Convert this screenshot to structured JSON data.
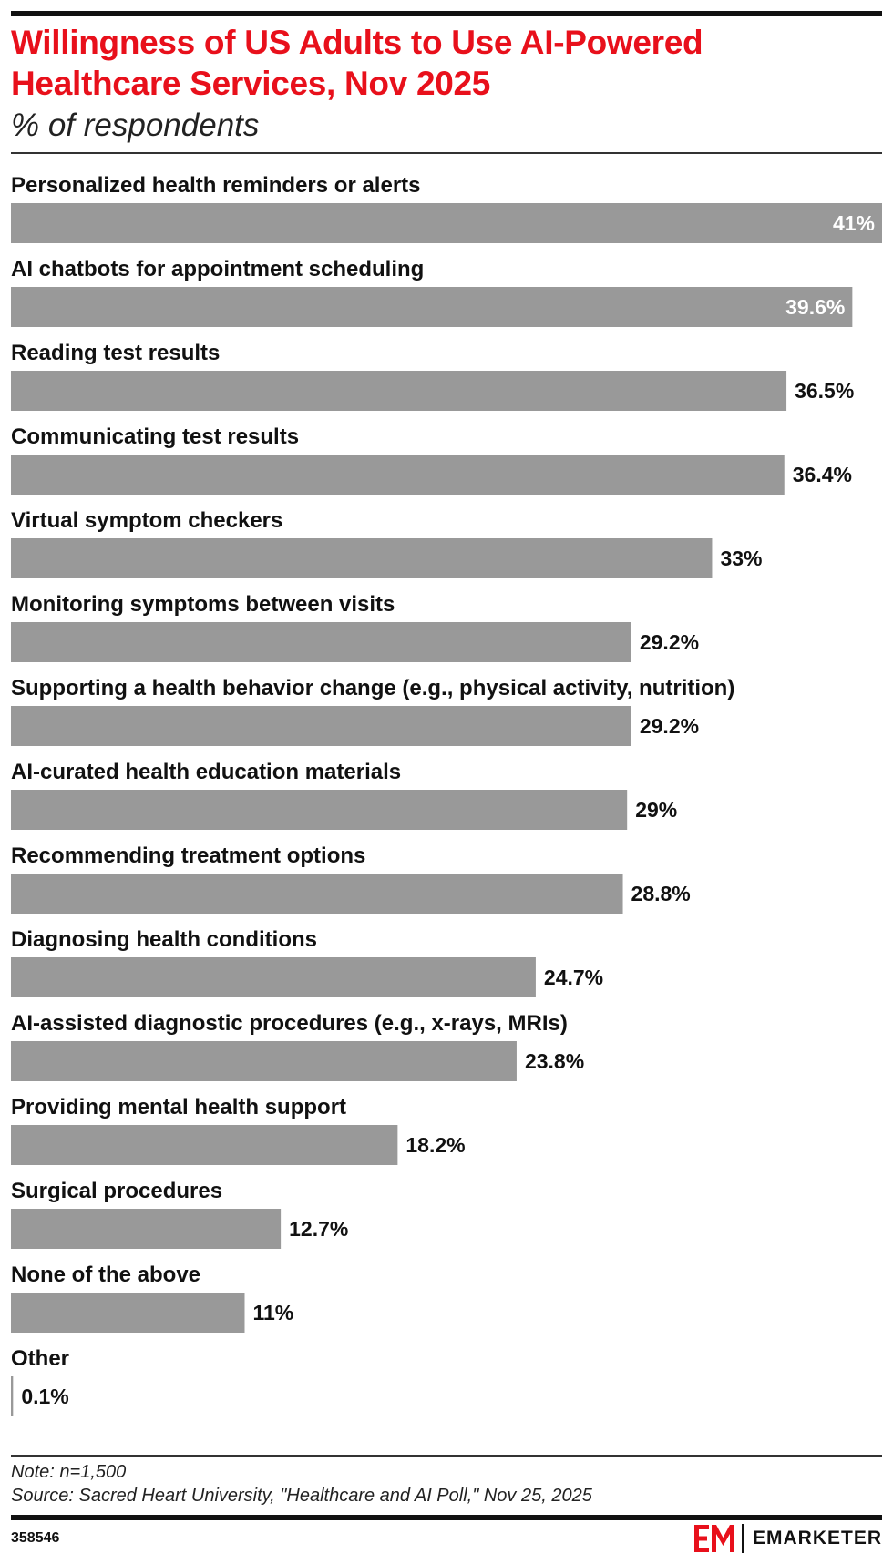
{
  "title": "Willingness of US Adults to Use AI-Powered Healthcare Services, Nov 2025",
  "subtitle": "% of respondents",
  "note": "Note: n=1,500",
  "source": "Source: Sacred Heart University, \"Healthcare and AI Poll,\" Nov 25, 2025",
  "chart_id": "358546",
  "brand": {
    "logo_icon": "em-logo-icon",
    "name": "EMARKETER"
  },
  "colors": {
    "title": "#e8101b",
    "bar": "#999999",
    "inside_label": "#ffffff",
    "text": "#111111",
    "logo": "#e8101b"
  },
  "chart_data": {
    "type": "bar",
    "orientation": "horizontal",
    "categories": [
      "Personalized health reminders or alerts",
      "AI chatbots for appointment scheduling",
      "Reading test results",
      "Communicating test results",
      "Virtual symptom checkers",
      "Monitoring symptoms between visits",
      "Supporting a health behavior change (e.g., physical activity, nutrition)",
      "AI-curated health education materials",
      "Recommending treatment options",
      "Diagnosing health conditions",
      "AI-assisted diagnostic procedures (e.g., x-rays, MRIs)",
      "Providing mental health support",
      "Surgical procedures",
      "None of the above",
      "Other"
    ],
    "values": [
      41,
      39.6,
      36.5,
      36.4,
      33,
      29.2,
      29.2,
      29,
      28.8,
      24.7,
      23.8,
      18.2,
      12.7,
      11,
      0.1
    ],
    "labels": [
      "41%",
      "39.6%",
      "36.5%",
      "36.4%",
      "33%",
      "29.2%",
      "29.2%",
      "29%",
      "28.8%",
      "24.7%",
      "23.8%",
      "18.2%",
      "12.7%",
      "11%",
      "0.1%"
    ],
    "xlim": [
      0,
      41
    ],
    "grid": false,
    "legend": "none"
  }
}
